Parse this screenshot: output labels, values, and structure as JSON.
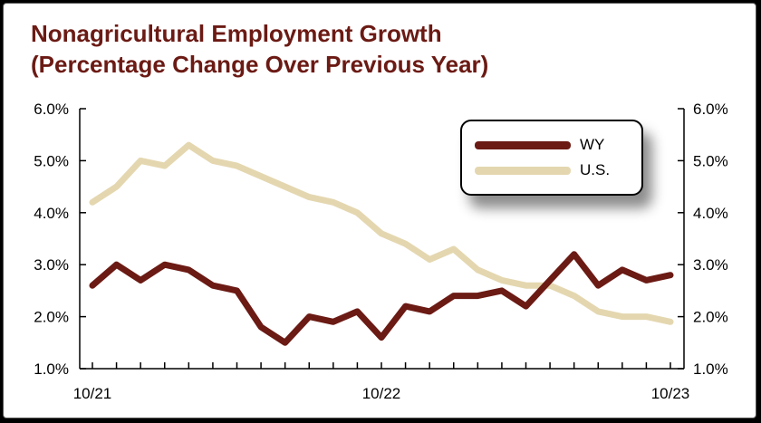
{
  "chart_data": {
    "type": "line",
    "title_line1": "Nonagricultural Employment Growth",
    "title_line2": "(Percentage Change Over Previous Year)",
    "xlabel": "",
    "ylabel": "",
    "ylim": [
      1.0,
      6.0
    ],
    "y_ticks": [
      "1.0%",
      "2.0%",
      "3.0%",
      "4.0%",
      "5.0%",
      "6.0%"
    ],
    "x_ticks": [
      "10/21",
      "10/22",
      "10/23"
    ],
    "legend_position": "top-right",
    "grid": false,
    "x": [
      "10/21",
      "11/21",
      "12/21",
      "1/22",
      "2/22",
      "3/22",
      "4/22",
      "5/22",
      "6/22",
      "7/22",
      "8/22",
      "9/22",
      "10/22",
      "11/22",
      "12/22",
      "1/23",
      "2/23",
      "3/23",
      "4/23",
      "5/23",
      "6/23",
      "7/23",
      "8/23",
      "9/23",
      "10/23"
    ],
    "series": [
      {
        "name": "WY",
        "color": "#6b1a14",
        "values": [
          2.6,
          3.0,
          2.7,
          3.0,
          2.9,
          2.6,
          2.5,
          1.8,
          1.5,
          2.0,
          1.9,
          2.1,
          1.6,
          2.2,
          2.1,
          2.4,
          2.4,
          2.5,
          2.2,
          2.7,
          3.2,
          2.6,
          2.9,
          2.7,
          2.8
        ]
      },
      {
        "name": "U.S.",
        "color": "#e4d7b0",
        "values": [
          4.2,
          4.5,
          5.0,
          4.9,
          5.3,
          5.0,
          4.9,
          4.7,
          4.5,
          4.3,
          4.2,
          4.0,
          3.6,
          3.4,
          3.1,
          3.3,
          2.9,
          2.7,
          2.6,
          2.6,
          2.4,
          2.1,
          2.0,
          2.0,
          1.9
        ]
      }
    ]
  }
}
